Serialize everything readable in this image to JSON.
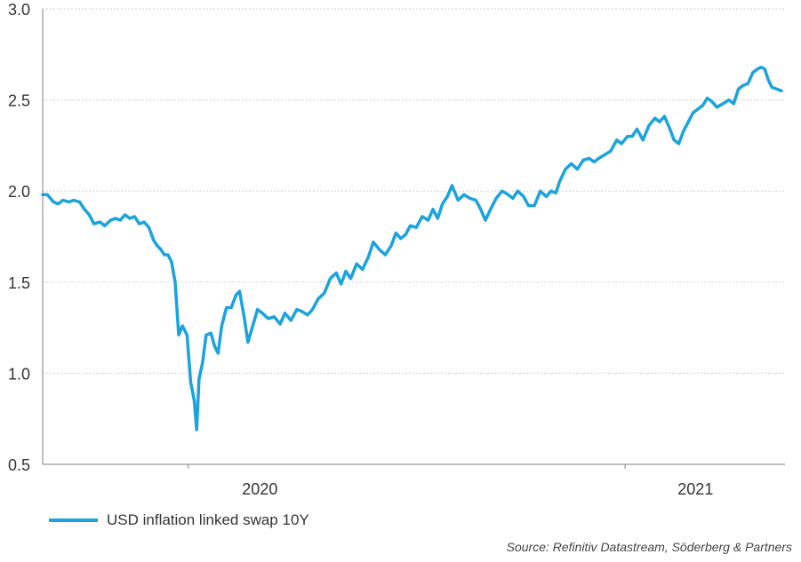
{
  "colors": {
    "series": "#1aa3dc",
    "grid": "#d0d0d0",
    "axis": "#808080",
    "text": "#333333"
  },
  "source": "Source: Refinitiv Datastream, Söderberg & Partners",
  "chart_data": {
    "type": "line",
    "title": "",
    "xlabel": "",
    "ylabel": "",
    "ylim": [
      0.5,
      3.0
    ],
    "yticks": [
      "0.5",
      "1.0",
      "1.5",
      "2.0",
      "2.5",
      "3.0"
    ],
    "xlim": [
      "2019-09-01",
      "2021-05-15"
    ],
    "xticks": [
      {
        "label": "2020",
        "date": "2020-03-01"
      },
      {
        "label": "2021",
        "date": "2021-03-01"
      }
    ],
    "year_boundaries": [
      "2020-01-01",
      "2021-01-01"
    ],
    "grid": true,
    "legend_position": "bottom-left",
    "series": [
      {
        "name": "USD inflation linked swap 10Y",
        "color": "#1aa3dc",
        "points": [
          [
            "2019-09-01",
            1.98
          ],
          [
            "2019-09-05",
            1.98
          ],
          [
            "2019-09-10",
            1.94
          ],
          [
            "2019-09-14",
            1.93
          ],
          [
            "2019-09-18",
            1.95
          ],
          [
            "2019-09-23",
            1.94
          ],
          [
            "2019-09-27",
            1.95
          ],
          [
            "2019-10-02",
            1.94
          ],
          [
            "2019-10-06",
            1.9
          ],
          [
            "2019-10-10",
            1.87
          ],
          [
            "2019-10-14",
            1.82
          ],
          [
            "2019-10-19",
            1.83
          ],
          [
            "2019-10-23",
            1.81
          ],
          [
            "2019-10-28",
            1.84
          ],
          [
            "2019-11-01",
            1.85
          ],
          [
            "2019-11-05",
            1.84
          ],
          [
            "2019-11-09",
            1.87
          ],
          [
            "2019-11-13",
            1.85
          ],
          [
            "2019-11-17",
            1.86
          ],
          [
            "2019-11-21",
            1.82
          ],
          [
            "2019-11-25",
            1.83
          ],
          [
            "2019-11-29",
            1.8
          ],
          [
            "2019-12-03",
            1.73
          ],
          [
            "2019-12-06",
            1.7
          ],
          [
            "2019-12-09",
            1.68
          ],
          [
            "2019-12-12",
            1.65
          ],
          [
            "2019-12-15",
            1.65
          ],
          [
            "2019-12-18",
            1.61
          ],
          [
            "2019-12-21",
            1.5
          ],
          [
            "2019-12-24",
            1.21
          ],
          [
            "2019-12-27",
            1.26
          ],
          [
            "2019-12-31",
            1.21
          ],
          [
            "2020-01-03",
            0.95
          ],
          [
            "2020-01-06",
            0.85
          ],
          [
            "2020-01-08",
            0.69
          ],
          [
            "2020-01-10",
            0.97
          ],
          [
            "2020-01-13",
            1.06
          ],
          [
            "2020-01-16",
            1.21
          ],
          [
            "2020-01-20",
            1.22
          ],
          [
            "2020-01-23",
            1.15
          ],
          [
            "2020-01-26",
            1.11
          ],
          [
            "2020-01-29",
            1.26
          ],
          [
            "2020-02-02",
            1.36
          ],
          [
            "2020-02-06",
            1.36
          ],
          [
            "2020-02-10",
            1.43
          ],
          [
            "2020-02-13",
            1.45
          ],
          [
            "2020-02-17",
            1.3
          ],
          [
            "2020-02-20",
            1.17
          ],
          [
            "2020-02-24",
            1.26
          ],
          [
            "2020-02-28",
            1.35
          ],
          [
            "2020-03-03",
            1.33
          ],
          [
            "2020-03-08",
            1.3
          ],
          [
            "2020-03-13",
            1.31
          ],
          [
            "2020-03-18",
            1.27
          ],
          [
            "2020-03-22",
            1.33
          ],
          [
            "2020-03-27",
            1.29
          ],
          [
            "2020-04-01",
            1.35
          ],
          [
            "2020-04-05",
            1.34
          ],
          [
            "2020-04-10",
            1.32
          ],
          [
            "2020-04-14",
            1.35
          ],
          [
            "2020-04-19",
            1.41
          ],
          [
            "2020-04-24",
            1.44
          ],
          [
            "2020-04-29",
            1.52
          ],
          [
            "2020-05-04",
            1.55
          ],
          [
            "2020-05-08",
            1.49
          ],
          [
            "2020-05-12",
            1.56
          ],
          [
            "2020-05-16",
            1.52
          ],
          [
            "2020-05-21",
            1.6
          ],
          [
            "2020-05-26",
            1.57
          ],
          [
            "2020-05-31",
            1.64
          ],
          [
            "2020-06-04",
            1.72
          ],
          [
            "2020-06-09",
            1.68
          ],
          [
            "2020-06-14",
            1.65
          ],
          [
            "2020-06-19",
            1.7
          ],
          [
            "2020-06-23",
            1.77
          ],
          [
            "2020-06-27",
            1.74
          ],
          [
            "2020-07-01",
            1.76
          ],
          [
            "2020-07-05",
            1.81
          ],
          [
            "2020-07-10",
            1.8
          ],
          [
            "2020-07-15",
            1.86
          ],
          [
            "2020-07-20",
            1.84
          ],
          [
            "2020-07-24",
            1.9
          ],
          [
            "2020-07-28",
            1.85
          ],
          [
            "2020-08-01",
            1.93
          ],
          [
            "2020-08-05",
            1.97
          ],
          [
            "2020-08-09",
            2.03
          ],
          [
            "2020-08-14",
            1.95
          ],
          [
            "2020-08-19",
            1.98
          ],
          [
            "2020-08-24",
            1.96
          ],
          [
            "2020-08-29",
            1.95
          ],
          [
            "2020-09-02",
            1.9
          ],
          [
            "2020-09-06",
            1.84
          ],
          [
            "2020-09-11",
            1.91
          ],
          [
            "2020-09-15",
            1.96
          ],
          [
            "2020-09-20",
            2.0
          ],
          [
            "2020-09-25",
            1.98
          ],
          [
            "2020-09-29",
            1.96
          ],
          [
            "2020-10-03",
            2.0
          ],
          [
            "2020-10-08",
            1.97
          ],
          [
            "2020-10-12",
            1.92
          ],
          [
            "2020-10-17",
            1.92
          ],
          [
            "2020-10-22",
            2.0
          ],
          [
            "2020-10-27",
            1.97
          ],
          [
            "2020-10-31",
            2.0
          ],
          [
            "2020-11-04",
            1.99
          ],
          [
            "2020-11-07",
            2.05
          ],
          [
            "2020-11-12",
            2.12
          ],
          [
            "2020-11-17",
            2.15
          ],
          [
            "2020-11-22",
            2.12
          ],
          [
            "2020-11-27",
            2.17
          ],
          [
            "2020-12-02",
            2.18
          ],
          [
            "2020-12-06",
            2.16
          ],
          [
            "2020-12-10",
            2.18
          ],
          [
            "2020-12-15",
            2.2
          ],
          [
            "2020-12-20",
            2.22
          ],
          [
            "2020-12-25",
            2.28
          ],
          [
            "2020-12-29",
            2.26
          ],
          [
            "2021-01-03",
            2.3
          ],
          [
            "2021-01-07",
            2.3
          ],
          [
            "2021-01-11",
            2.34
          ],
          [
            "2021-01-16",
            2.28
          ],
          [
            "2021-01-21",
            2.36
          ],
          [
            "2021-01-26",
            2.4
          ],
          [
            "2021-01-30",
            2.38
          ],
          [
            "2021-02-03",
            2.41
          ],
          [
            "2021-02-07",
            2.35
          ],
          [
            "2021-02-11",
            2.28
          ],
          [
            "2021-02-15",
            2.26
          ],
          [
            "2021-02-19",
            2.33
          ],
          [
            "2021-02-23",
            2.38
          ],
          [
            "2021-02-27",
            2.43
          ],
          [
            "2021-03-03",
            2.45
          ],
          [
            "2021-03-07",
            2.47
          ],
          [
            "2021-03-11",
            2.51
          ],
          [
            "2021-03-15",
            2.49
          ],
          [
            "2021-03-19",
            2.46
          ],
          [
            "2021-03-24",
            2.48
          ],
          [
            "2021-03-29",
            2.5
          ],
          [
            "2021-04-02",
            2.48
          ],
          [
            "2021-04-06",
            2.56
          ],
          [
            "2021-04-10",
            2.58
          ],
          [
            "2021-04-14",
            2.59
          ],
          [
            "2021-04-18",
            2.65
          ],
          [
            "2021-04-22",
            2.67
          ],
          [
            "2021-04-25",
            2.68
          ],
          [
            "2021-04-28",
            2.67
          ],
          [
            "2021-05-01",
            2.61
          ],
          [
            "2021-05-04",
            2.57
          ],
          [
            "2021-05-08",
            2.56
          ],
          [
            "2021-05-12",
            2.55
          ]
        ]
      }
    ]
  }
}
